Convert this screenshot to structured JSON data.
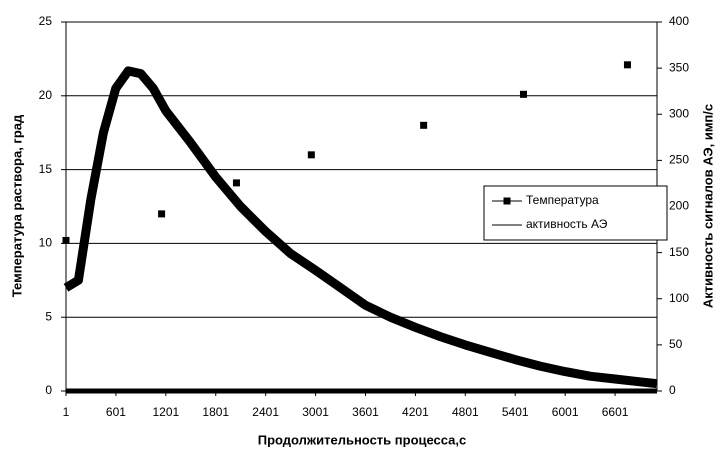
{
  "chart_data": {
    "type": "line",
    "x_label": "Продолжительность процесса,с",
    "y_label": "Температура раствора, град",
    "y2_label": "Активность сигналов АЭ, имп/с",
    "xlim": [
      1,
      7105
    ],
    "xticks": [
      1,
      601,
      1201,
      1801,
      2401,
      3001,
      3601,
      4201,
      4801,
      5401,
      6001,
      6601
    ],
    "ylim": [
      0,
      25
    ],
    "yticks": [
      0,
      5,
      10,
      15,
      20,
      25
    ],
    "y2lim": [
      0,
      400
    ],
    "y2ticks": [
      0,
      50,
      100,
      150,
      200,
      250,
      300,
      350,
      400
    ],
    "grid": true,
    "legend": "right",
    "series": [
      {
        "name": "Температура",
        "color": "#000000",
        "marker": "square",
        "axis": "y",
        "x": [
          1,
          1150,
          2050,
          2950,
          4300,
          5500,
          6750
        ],
        "values": [
          10.2,
          12.0,
          14.1,
          16.0,
          18.0,
          20.1,
          22.1
        ]
      },
      {
        "name": "активность АЭ",
        "color": "#000000",
        "axis": "y2",
        "x": [
          1,
          150,
          300,
          450,
          600,
          750,
          900,
          1050,
          1200,
          1500,
          1800,
          2100,
          2400,
          2700,
          3000,
          3300,
          3600,
          3900,
          4200,
          4500,
          4800,
          5100,
          5400,
          5700,
          6000,
          6300,
          6600,
          6900,
          7100
        ],
        "values": [
          112,
          120,
          208,
          280,
          328,
          347,
          344,
          328,
          304,
          269,
          232,
          200,
          173,
          149,
          131,
          112,
          93,
          80,
          69,
          59,
          50,
          42,
          34,
          27,
          21,
          16,
          13,
          10,
          8
        ]
      }
    ]
  }
}
